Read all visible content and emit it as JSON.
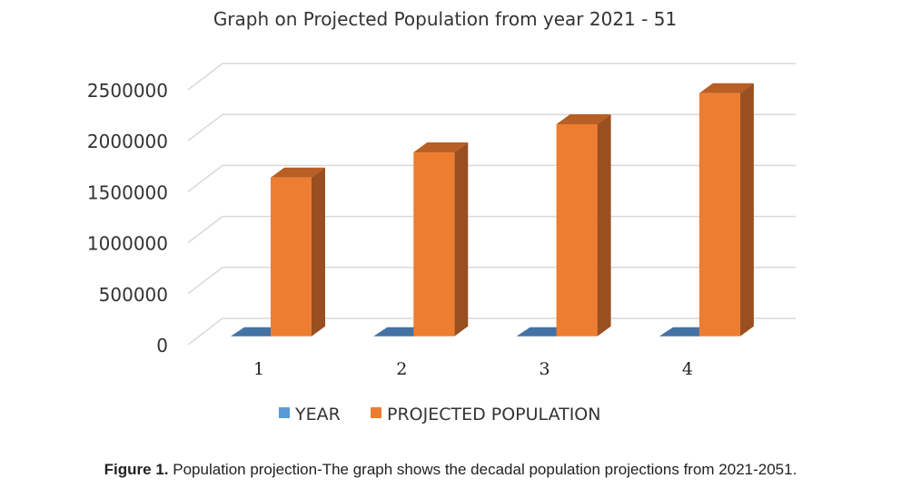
{
  "chart_data": {
    "type": "bar",
    "title": "Graph on Projected Population from year 2021 - 51",
    "categories": [
      "1",
      "2",
      "3",
      "4"
    ],
    "series": [
      {
        "name": "YEAR",
        "values": [
          2021,
          2031,
          2041,
          2051
        ],
        "color": "#4472A4"
      },
      {
        "name": "PROJECTED POPULATION",
        "values": [
          1557000,
          1803000,
          2079000,
          2384000
        ],
        "color": "#ED7D31"
      }
    ],
    "yticks": [
      "0",
      "500000",
      "1000000",
      "1500000",
      "2000000",
      "2500000"
    ],
    "ylim": [
      0,
      2500000
    ],
    "xlabel": "",
    "ylabel": "",
    "grid": true,
    "legend_position": "bottom",
    "style": "3d-column"
  },
  "caption": {
    "label": "Figure 1.",
    "text": " Population projection-The graph shows the decadal population projections from 2021-2051."
  }
}
